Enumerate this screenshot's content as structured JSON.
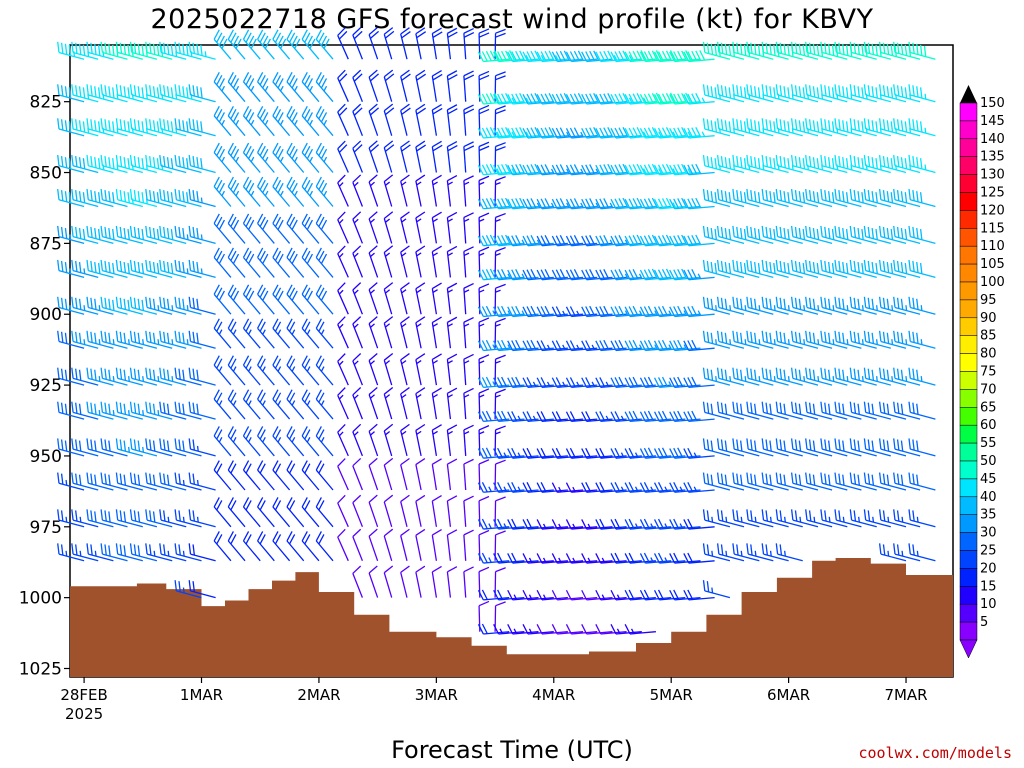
{
  "chart_data": {
    "type": "wind-barbs",
    "title": "2025022718 GFS forecast wind profile (kt) for KBVY",
    "xlabel": "Forecast Time (UTC)",
    "credit": "coolwx.com/models",
    "y_ticks": [
      825,
      850,
      875,
      900,
      925,
      950,
      975,
      1000,
      1025
    ],
    "ylim": [
      1028,
      805
    ],
    "x_ticks": [
      {
        "label": "28FEB",
        "sublabel": "2025",
        "t": 0
      },
      {
        "label": "1MAR",
        "t": 1
      },
      {
        "label": "2MAR",
        "t": 2
      },
      {
        "label": "3MAR",
        "t": 3
      },
      {
        "label": "4MAR",
        "t": 4
      },
      {
        "label": "5MAR",
        "t": 5
      },
      {
        "label": "6MAR",
        "t": 6
      },
      {
        "label": "7MAR",
        "t": 7
      }
    ],
    "xlim": [
      -0.12,
      7.4
    ],
    "colorbar": {
      "labels": [
        150,
        145,
        140,
        135,
        130,
        125,
        120,
        115,
        110,
        105,
        100,
        95,
        90,
        85,
        80,
        75,
        70,
        65,
        60,
        55,
        50,
        45,
        40,
        35,
        30,
        25,
        20,
        15,
        10,
        5
      ],
      "colors": [
        "#ff00ff",
        "#ff00cc",
        "#ff0099",
        "#ff0066",
        "#ff0033",
        "#ff0000",
        "#ff2a00",
        "#ff5500",
        "#ff7700",
        "#ff8800",
        "#ff9900",
        "#ffaa00",
        "#ffcc00",
        "#ffee00",
        "#ffff00",
        "#ccff00",
        "#88ff00",
        "#44ff00",
        "#00ff44",
        "#00ff99",
        "#00ffcc",
        "#00e5ff",
        "#00bbff",
        "#0099ff",
        "#0066ff",
        "#0044ff",
        "#0022ff",
        "#2200ff",
        "#5500ff",
        "#8800ff"
      ]
    },
    "surface_pressure": [
      {
        "t": -0.12,
        "p": 996
      },
      {
        "t": 0.2,
        "p": 996
      },
      {
        "t": 0.45,
        "p": 995
      },
      {
        "t": 0.7,
        "p": 997
      },
      {
        "t": 1.0,
        "p": 1003
      },
      {
        "t": 1.2,
        "p": 1001
      },
      {
        "t": 1.4,
        "p": 997
      },
      {
        "t": 1.6,
        "p": 994
      },
      {
        "t": 1.8,
        "p": 991
      },
      {
        "t": 2.0,
        "p": 998
      },
      {
        "t": 2.3,
        "p": 1006
      },
      {
        "t": 2.6,
        "p": 1012
      },
      {
        "t": 3.0,
        "p": 1014
      },
      {
        "t": 3.3,
        "p": 1017
      },
      {
        "t": 3.6,
        "p": 1020
      },
      {
        "t": 4.0,
        "p": 1020
      },
      {
        "t": 4.3,
        "p": 1019
      },
      {
        "t": 4.7,
        "p": 1016
      },
      {
        "t": 5.0,
        "p": 1012
      },
      {
        "t": 5.3,
        "p": 1006
      },
      {
        "t": 5.6,
        "p": 998
      },
      {
        "t": 5.9,
        "p": 993
      },
      {
        "t": 6.2,
        "p": 987
      },
      {
        "t": 6.4,
        "p": 986
      },
      {
        "t": 6.7,
        "p": 988
      },
      {
        "t": 7.0,
        "p": 992
      },
      {
        "t": 7.4,
        "p": 995
      }
    ],
    "barbs": {
      "times": [
        -0.12,
        0.0,
        0.12,
        0.25,
        0.37,
        0.5,
        0.62,
        0.75,
        0.87,
        1.0,
        1.12,
        1.25,
        1.37,
        1.5,
        1.62,
        1.75,
        1.87,
        2.0,
        2.12,
        2.25,
        2.37,
        2.5,
        2.62,
        2.75,
        2.87,
        3.0,
        3.12,
        3.25,
        3.37,
        3.5,
        3.62,
        3.75,
        3.87,
        4.0,
        4.12,
        4.25,
        4.37,
        4.5,
        4.62,
        4.75,
        4.87,
        5.0,
        5.12,
        5.25,
        5.37,
        5.5,
        5.62,
        5.75,
        5.87,
        6.0,
        6.12,
        6.25,
        6.37,
        6.5,
        6.62,
        6.75,
        6.87,
        7.0,
        7.12,
        7.25
      ],
      "levels": [
        810,
        825,
        837,
        850,
        862,
        875,
        887,
        900,
        912,
        925,
        937,
        950,
        962,
        975,
        987,
        1000,
        1012
      ]
    }
  }
}
